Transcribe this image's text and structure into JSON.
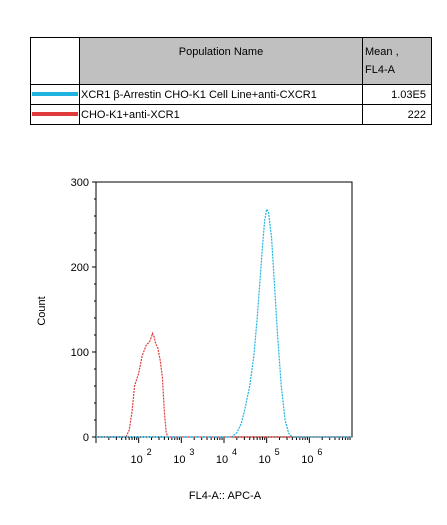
{
  "table": {
    "headers": {
      "population": "Population Name",
      "mean_line1": "Mean ,",
      "mean_line2": "FL4-A"
    },
    "rows": [
      {
        "name": "XCR1 β-Arrestin CHO-K1 Cell Line+anti-CXCR1",
        "mean": "1.03E5",
        "color": "#1fb3e0"
      },
      {
        "name": "CHO-K1+anti-XCR1",
        "mean": "222",
        "color": "#e03a3a"
      }
    ]
  },
  "chart_data": {
    "type": "area",
    "xlabel": "FL4-A:: APC-A",
    "ylabel": "Count",
    "x_scale": "log",
    "xlim": [
      10,
      10000000
    ],
    "ylim": [
      0,
      300
    ],
    "x_ticks": [
      {
        "base": "10",
        "exp": "2"
      },
      {
        "base": "10",
        "exp": "3"
      },
      {
        "base": "10",
        "exp": "4"
      },
      {
        "base": "10",
        "exp": "5"
      },
      {
        "base": "10",
        "exp": "6"
      }
    ],
    "y_ticks": [
      "0",
      "100",
      "200",
      "300"
    ],
    "series": [
      {
        "color": "#e03a3a",
        "x": [
          10,
          50,
          60,
          70,
          80,
          100,
          120,
          150,
          180,
          200,
          210,
          230,
          250,
          280,
          320,
          360,
          400,
          440,
          480,
          10000000
        ],
        "y": [
          0,
          0,
          8,
          30,
          60,
          75,
          95,
          108,
          112,
          118,
          122,
          118,
          110,
          105,
          90,
          70,
          30,
          6,
          0,
          0
        ]
      },
      {
        "color": "#1fb3e0",
        "x": [
          10,
          15000,
          20000,
          25000,
          30000,
          40000,
          50000,
          60000,
          70000,
          80000,
          90000,
          100000,
          110000,
          130000,
          150000,
          180000,
          220000,
          270000,
          330000,
          400000,
          10000000
        ],
        "y": [
          0,
          0,
          5,
          15,
          30,
          60,
          95,
          140,
          185,
          225,
          255,
          268,
          265,
          235,
          185,
          120,
          60,
          20,
          4,
          0,
          0
        ]
      }
    ]
  }
}
